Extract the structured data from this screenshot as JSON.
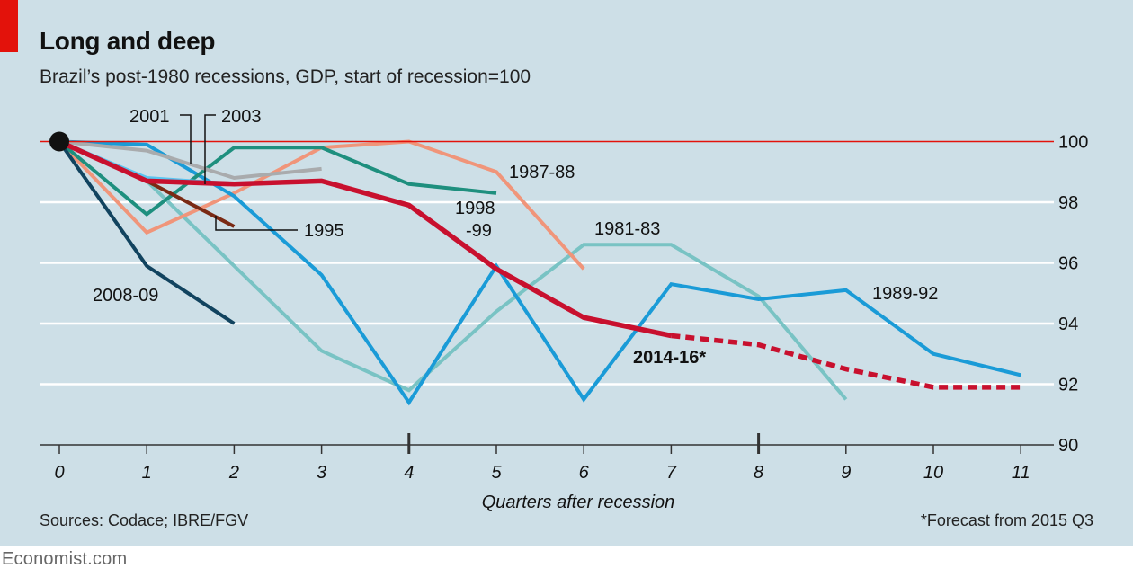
{
  "header": {
    "title": "Long and deep",
    "subtitle": "Brazil’s post-1980 recessions, GDP, start of recession=100"
  },
  "footer": {
    "sources": "Sources: Codace; IBRE/FGV",
    "footnote": "*Forecast from 2015 Q3",
    "brand": "Economist.com"
  },
  "chart_data": {
    "type": "line",
    "xlabel": "Quarters after recession",
    "ylabel": "",
    "xlim": [
      0,
      11
    ],
    "ylim": [
      90,
      100
    ],
    "x_ticks": [
      0,
      1,
      2,
      3,
      4,
      5,
      6,
      7,
      8,
      9,
      10,
      11
    ],
    "y_ticks": [
      90,
      92,
      94,
      96,
      98,
      100
    ],
    "y_axis_position": "right",
    "grid": "horizontal",
    "reference_line": 100,
    "series": [
      {
        "name": "1981-83",
        "color": "#79c3c4",
        "x": [
          0,
          1,
          2,
          3,
          4,
          5,
          6,
          7,
          8,
          9
        ],
        "values": [
          100,
          98.7,
          95.9,
          93.1,
          91.8,
          94.4,
          96.6,
          96.6,
          94.9,
          91.5
        ]
      },
      {
        "name": "1987-88",
        "color": "#f0957a",
        "x": [
          0,
          1,
          2,
          3,
          4,
          5,
          6
        ],
        "values": [
          100,
          97.0,
          98.3,
          99.8,
          100,
          99.0,
          95.8
        ]
      },
      {
        "name": "1989-92",
        "color": "#1a9bd7",
        "x": [
          0,
          1,
          2,
          3,
          4,
          5,
          6,
          7,
          8,
          9,
          10,
          11
        ],
        "values": [
          100,
          99.9,
          98.2,
          95.6,
          91.4,
          95.9,
          91.5,
          95.3,
          94.8,
          95.1,
          93.0,
          92.3
        ]
      },
      {
        "name": "1995",
        "color": "#7a2a14",
        "x": [
          1,
          2
        ],
        "values": [
          98.7,
          97.2
        ]
      },
      {
        "name": "1998-99",
        "color": "#1e8f7e",
        "x": [
          0,
          1,
          2,
          3,
          4,
          5
        ],
        "values": [
          100,
          97.6,
          99.8,
          99.8,
          98.6,
          98.3
        ]
      },
      {
        "name": "2001",
        "color": "#a9abad",
        "x": [
          0,
          1,
          2,
          3
        ],
        "values": [
          100,
          99.7,
          98.8,
          99.1
        ]
      },
      {
        "name": "2003",
        "color": "#5ac4f0",
        "x": [
          0,
          1,
          2
        ],
        "values": [
          100,
          98.8,
          98.6
        ]
      },
      {
        "name": "2008-09",
        "color": "#11435f",
        "x": [
          0,
          1,
          2
        ],
        "values": [
          100,
          95.9,
          94.0
        ]
      },
      {
        "name": "2014-16*",
        "color": "#c8102e",
        "x": [
          0,
          1,
          2,
          3,
          4,
          5,
          6,
          7
        ],
        "values": [
          100,
          98.7,
          98.6,
          98.7,
          97.9,
          95.8,
          94.2,
          93.6
        ],
        "forecast_x": [
          7,
          8,
          9,
          10,
          11
        ],
        "forecast_values": [
          93.6,
          93.3,
          92.5,
          91.9,
          91.9
        ]
      }
    ]
  }
}
